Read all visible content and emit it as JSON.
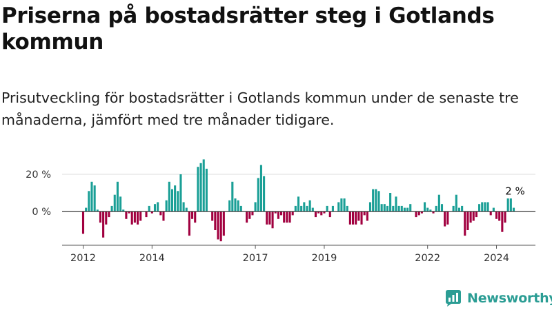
{
  "title": "Priserna på bostadsrätter steg i Gotlands kommun",
  "subtitle": "Prisutveckling för bostadsrätter i Gotlands kommun under de senaste tre månaderna, jämfört med tre månader tidigare.",
  "brand": {
    "name": "Newsworthy",
    "icon": "newsworthy-logo-icon"
  },
  "colors": {
    "positive": "#1a9f96",
    "negative": "#a1003f",
    "zero_line": "#333333",
    "grid": "#dddddd",
    "brand": "#2b9d94"
  },
  "chart_data": {
    "type": "bar",
    "title": "",
    "xlabel": "",
    "ylabel": "",
    "unit": "%",
    "ylim": [
      -17,
      30
    ],
    "grid": true,
    "y_ticks": [
      {
        "value": 20,
        "label": "20 %"
      },
      {
        "value": 0,
        "label": "0 %"
      }
    ],
    "x_ticks": [
      {
        "label": "2012",
        "bar_index": 0
      },
      {
        "label": "2014",
        "bar_index": 24
      },
      {
        "label": "2017",
        "bar_index": 60
      },
      {
        "label": "2019",
        "bar_index": 84
      },
      {
        "label": "2022",
        "bar_index": 120
      },
      {
        "label": "2024",
        "bar_index": 144
      }
    ],
    "annotation": {
      "text": "2 %",
      "bar_index": 150
    },
    "start_period": "2012-01",
    "interval": "monthly",
    "values": [
      -12,
      2,
      11,
      16,
      14,
      1,
      -6,
      -14,
      -7,
      -3,
      3,
      9,
      16,
      8,
      1,
      -4,
      -1,
      -7,
      -6,
      -7,
      -5,
      0,
      -3,
      3,
      -1,
      4,
      5,
      -2,
      -5,
      6,
      16,
      12,
      14,
      11,
      20,
      5,
      2,
      -13,
      -4,
      -6,
      24,
      26,
      28,
      23,
      0,
      -5,
      -10,
      -15,
      -16,
      -13,
      0,
      6,
      16,
      7,
      6,
      3,
      0,
      -6,
      -4,
      -2,
      5,
      18,
      25,
      19,
      -7,
      -7,
      -9,
      -1,
      -4,
      -2,
      -6,
      -6,
      -6,
      -2,
      3,
      8,
      3,
      5,
      3,
      6,
      2,
      -3,
      -1,
      -2,
      -1,
      3,
      -3,
      3,
      0,
      5,
      7,
      7,
      3,
      -7,
      -7,
      -7,
      -5,
      -7,
      -2,
      -5,
      5,
      12,
      12,
      11,
      4,
      4,
      3,
      10,
      3,
      8,
      3,
      3,
      2,
      2,
      4,
      0,
      -3,
      -2,
      -1,
      5,
      2,
      1,
      -1,
      3,
      9,
      4,
      -8,
      -7,
      0,
      3,
      9,
      2,
      3,
      -13,
      -10,
      -6,
      -5,
      -3,
      4,
      5,
      5,
      5,
      -2,
      2,
      -4,
      -5,
      -11,
      -6,
      7,
      7,
      2
    ]
  }
}
